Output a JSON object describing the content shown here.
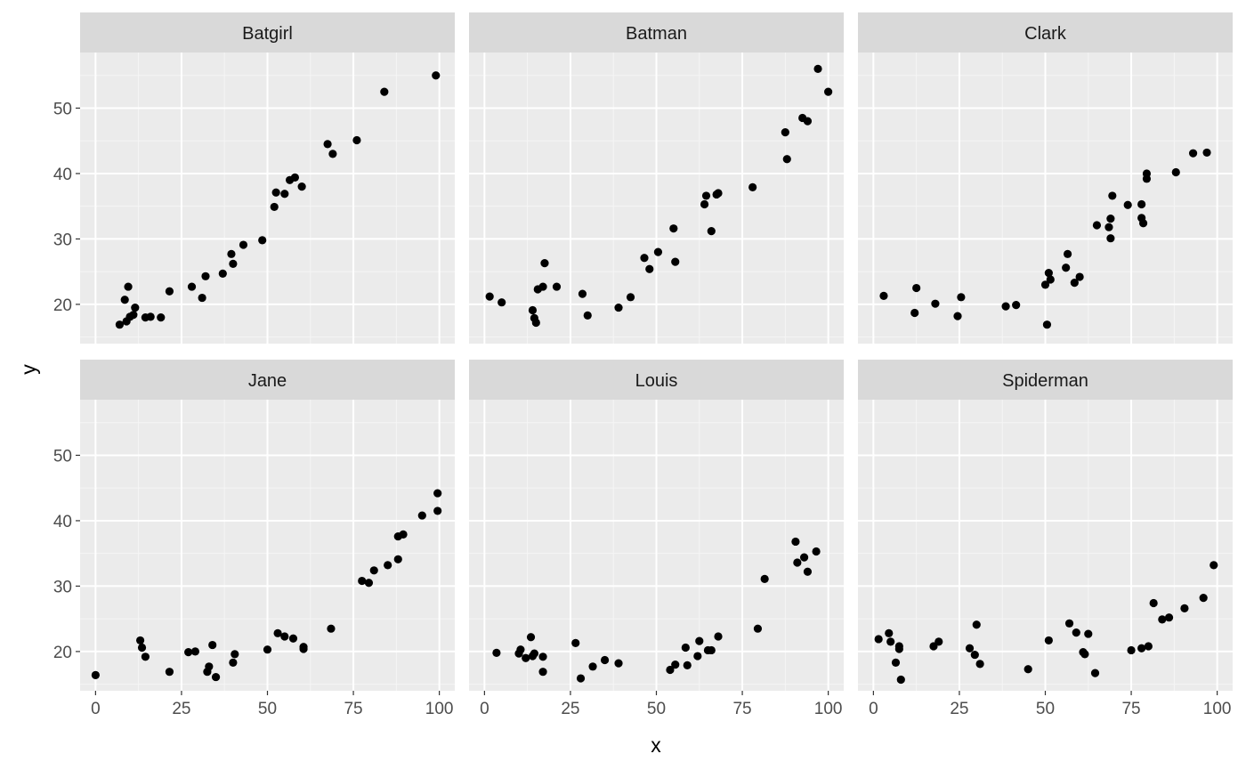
{
  "chart_data": {
    "type": "scatter",
    "xlabel": "x",
    "ylabel": "y",
    "xlim": [
      -4.5,
      104.5
    ],
    "ylim": [
      14,
      58.5
    ],
    "x_ticks": [
      0,
      25,
      50,
      75,
      100
    ],
    "y_ticks": [
      20,
      30,
      40,
      50
    ],
    "x_tick_labels": [
      "0",
      "25",
      "50",
      "75",
      "100"
    ],
    "y_tick_labels": [
      "20",
      "30",
      "40",
      "50"
    ],
    "grid": true,
    "legend": "none",
    "colors": {
      "panel_bg": "#ebebeb",
      "strip_bg": "#d9d9d9",
      "grid_major": "#ffffff",
      "grid_minor": "#f5f5f5",
      "point": "#000000",
      "tick_text": "#4d4d4d"
    },
    "facets": [
      {
        "label": "Batgirl",
        "points": [
          [
            7,
            16.9
          ],
          [
            8.5,
            20.7
          ],
          [
            9,
            17.4
          ],
          [
            9.5,
            22.7
          ],
          [
            10,
            18.1
          ],
          [
            11,
            18.4
          ],
          [
            11.5,
            19.5
          ],
          [
            14.5,
            18.0
          ],
          [
            16,
            18.1
          ],
          [
            19,
            18.0
          ],
          [
            21.5,
            22.0
          ],
          [
            28,
            22.7
          ],
          [
            31,
            21.0
          ],
          [
            32,
            24.3
          ],
          [
            37,
            24.7
          ],
          [
            39.5,
            27.7
          ],
          [
            40,
            26.2
          ],
          [
            43,
            29.1
          ],
          [
            48.5,
            29.8
          ],
          [
            52,
            34.9
          ],
          [
            52.5,
            37.1
          ],
          [
            55,
            36.9
          ],
          [
            56.5,
            39.0
          ],
          [
            58,
            39.4
          ],
          [
            60,
            38.0
          ],
          [
            67.5,
            44.5
          ],
          [
            69,
            43.0
          ],
          [
            76,
            45.1
          ],
          [
            84,
            52.5
          ],
          [
            99,
            55.0
          ]
        ]
      },
      {
        "label": "Batman",
        "points": [
          [
            1.5,
            21.2
          ],
          [
            5,
            20.3
          ],
          [
            14,
            19.1
          ],
          [
            14.5,
            17.9
          ],
          [
            15,
            17.2
          ],
          [
            15.5,
            22.3
          ],
          [
            17,
            22.7
          ],
          [
            17.5,
            26.3
          ],
          [
            21,
            22.7
          ],
          [
            28.5,
            21.6
          ],
          [
            30,
            18.3
          ],
          [
            39,
            19.5
          ],
          [
            42.5,
            21.1
          ],
          [
            46.5,
            27.1
          ],
          [
            48,
            25.4
          ],
          [
            50.5,
            28.0
          ],
          [
            55,
            31.6
          ],
          [
            55.5,
            26.5
          ],
          [
            64,
            35.3
          ],
          [
            64.5,
            36.6
          ],
          [
            66,
            31.2
          ],
          [
            67.5,
            36.8
          ],
          [
            68,
            37.0
          ],
          [
            78,
            37.9
          ],
          [
            87.5,
            46.3
          ],
          [
            88,
            42.2
          ],
          [
            92.5,
            48.5
          ],
          [
            94,
            48.0
          ],
          [
            97,
            56.0
          ],
          [
            100,
            52.5
          ]
        ]
      },
      {
        "label": "Clark",
        "points": [
          [
            3,
            21.3
          ],
          [
            12,
            18.7
          ],
          [
            12.5,
            22.5
          ],
          [
            18,
            20.1
          ],
          [
            24.5,
            18.2
          ],
          [
            25.5,
            21.1
          ],
          [
            38.5,
            19.7
          ],
          [
            41.5,
            19.9
          ],
          [
            50.5,
            16.9
          ],
          [
            50,
            23.0
          ],
          [
            51,
            24.8
          ],
          [
            51.5,
            23.8
          ],
          [
            56,
            25.6
          ],
          [
            56.5,
            27.7
          ],
          [
            58.5,
            23.3
          ],
          [
            60,
            24.2
          ],
          [
            65,
            32.1
          ],
          [
            68.5,
            31.8
          ],
          [
            69,
            30.1
          ],
          [
            69,
            33.1
          ],
          [
            69.5,
            36.6
          ],
          [
            74,
            35.2
          ],
          [
            78,
            35.3
          ],
          [
            78,
            33.2
          ],
          [
            78.5,
            32.4
          ],
          [
            79.5,
            39.2
          ],
          [
            79.5,
            40.0
          ],
          [
            88,
            40.2
          ],
          [
            93,
            43.1
          ],
          [
            97,
            43.2
          ]
        ]
      },
      {
        "label": "Jane",
        "points": [
          [
            0,
            16.4
          ],
          [
            13,
            21.7
          ],
          [
            13.5,
            20.6
          ],
          [
            14.5,
            19.2
          ],
          [
            21.5,
            16.9
          ],
          [
            27,
            19.9
          ],
          [
            29,
            20.0
          ],
          [
            32.5,
            16.9
          ],
          [
            33,
            17.7
          ],
          [
            34,
            21.0
          ],
          [
            35,
            16.1
          ],
          [
            40,
            18.3
          ],
          [
            40.5,
            19.6
          ],
          [
            50,
            20.3
          ],
          [
            53,
            22.8
          ],
          [
            55,
            22.3
          ],
          [
            57.5,
            22.0
          ],
          [
            60.5,
            20.7
          ],
          [
            60.5,
            20.4
          ],
          [
            68.5,
            23.5
          ],
          [
            77.5,
            30.8
          ],
          [
            79.5,
            30.5
          ],
          [
            81,
            32.4
          ],
          [
            85,
            33.2
          ],
          [
            88,
            34.1
          ],
          [
            88,
            37.6
          ],
          [
            89.5,
            37.9
          ],
          [
            95,
            40.8
          ],
          [
            99.5,
            41.5
          ],
          [
            99.5,
            44.2
          ]
        ]
      },
      {
        "label": "Louis",
        "points": [
          [
            3.5,
            19.8
          ],
          [
            10,
            19.7
          ],
          [
            10.5,
            20.3
          ],
          [
            12,
            19.0
          ],
          [
            13.5,
            22.2
          ],
          [
            14,
            19.3
          ],
          [
            14.5,
            19.7
          ],
          [
            17,
            19.2
          ],
          [
            17,
            16.9
          ],
          [
            26.5,
            21.3
          ],
          [
            28,
            15.9
          ],
          [
            31.5,
            17.7
          ],
          [
            35,
            18.7
          ],
          [
            39,
            18.2
          ],
          [
            54,
            17.2
          ],
          [
            55.5,
            18.0
          ],
          [
            58.5,
            20.6
          ],
          [
            59,
            17.9
          ],
          [
            62,
            19.3
          ],
          [
            62.5,
            21.6
          ],
          [
            65,
            20.2
          ],
          [
            66,
            20.2
          ],
          [
            68,
            22.3
          ],
          [
            79.5,
            23.5
          ],
          [
            81.5,
            31.1
          ],
          [
            90.5,
            36.8
          ],
          [
            91,
            33.6
          ],
          [
            93,
            34.4
          ],
          [
            94,
            32.2
          ],
          [
            96.5,
            35.3
          ]
        ]
      },
      {
        "label": "Spiderman",
        "points": [
          [
            1.5,
            21.9
          ],
          [
            4.5,
            22.8
          ],
          [
            5,
            21.5
          ],
          [
            6.5,
            18.3
          ],
          [
            7.5,
            20.8
          ],
          [
            7.5,
            20.4
          ],
          [
            8,
            15.7
          ],
          [
            17.5,
            20.8
          ],
          [
            19,
            21.5
          ],
          [
            28,
            20.5
          ],
          [
            29.5,
            19.5
          ],
          [
            30,
            24.1
          ],
          [
            31,
            18.1
          ],
          [
            45,
            17.3
          ],
          [
            51,
            21.7
          ],
          [
            57,
            24.3
          ],
          [
            59,
            22.9
          ],
          [
            61,
            19.9
          ],
          [
            61.5,
            19.6
          ],
          [
            62.5,
            22.7
          ],
          [
            64.5,
            16.7
          ],
          [
            75,
            20.2
          ],
          [
            78,
            20.5
          ],
          [
            80,
            20.8
          ],
          [
            81.5,
            27.4
          ],
          [
            84,
            24.9
          ],
          [
            86,
            25.2
          ],
          [
            90.5,
            26.6
          ],
          [
            96,
            28.2
          ],
          [
            99,
            33.2
          ]
        ]
      }
    ]
  }
}
